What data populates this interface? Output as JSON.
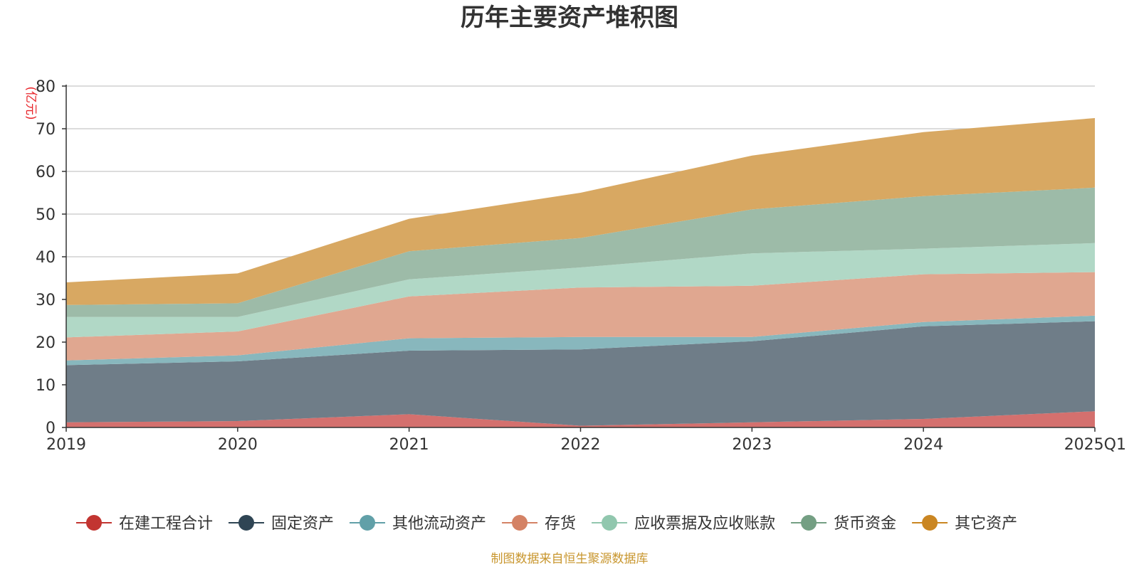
{
  "chart_data": {
    "type": "area",
    "stacked": true,
    "title": "历年主要资产堆积图",
    "unit_label": "(亿元)",
    "categories": [
      "2019",
      "2020",
      "2021",
      "2022",
      "2023",
      "2024",
      "2025Q1"
    ],
    "ylim": [
      0,
      80
    ],
    "yticks": [
      0,
      10,
      20,
      30,
      40,
      50,
      60,
      70,
      80
    ],
    "grid": true,
    "legend_position": "bottom",
    "series": [
      {
        "name": "在建工程合计",
        "color": "#c23531",
        "fill": "#d4706e",
        "values": [
          1.2,
          1.5,
          3.1,
          0.4,
          1.2,
          2.0,
          3.8
        ]
      },
      {
        "name": "固定资产",
        "color": "#2f4554",
        "fill": "#6f7d88",
        "values": [
          13.4,
          14.0,
          14.9,
          17.9,
          19.0,
          21.7,
          21.1
        ]
      },
      {
        "name": "其他流动资产",
        "color": "#61a0a8",
        "fill": "#88b7bd",
        "values": [
          1.1,
          1.4,
          2.9,
          2.9,
          1.0,
          1.0,
          1.3
        ]
      },
      {
        "name": "存货",
        "color": "#d48265",
        "fill": "#e0a790",
        "values": [
          5.4,
          5.6,
          9.8,
          11.6,
          12.0,
          11.2,
          10.2
        ]
      },
      {
        "name": "应收票据及应收账款",
        "color": "#91c7ae",
        "fill": "#b1d8c6",
        "values": [
          4.8,
          3.4,
          4.0,
          4.7,
          7.6,
          6.0,
          6.8
        ]
      },
      {
        "name": "货币资金",
        "color": "#749f83",
        "fill": "#9dbba8",
        "values": [
          2.8,
          3.2,
          6.6,
          6.9,
          10.3,
          12.3,
          13.0
        ]
      },
      {
        "name": "其它资产",
        "color": "#ca8622",
        "fill": "#d8a862",
        "values": [
          5.3,
          7.0,
          7.6,
          10.6,
          12.6,
          15.0,
          16.3
        ]
      }
    ]
  },
  "footer": {
    "source": "制图数据来自恒生聚源数据库"
  }
}
